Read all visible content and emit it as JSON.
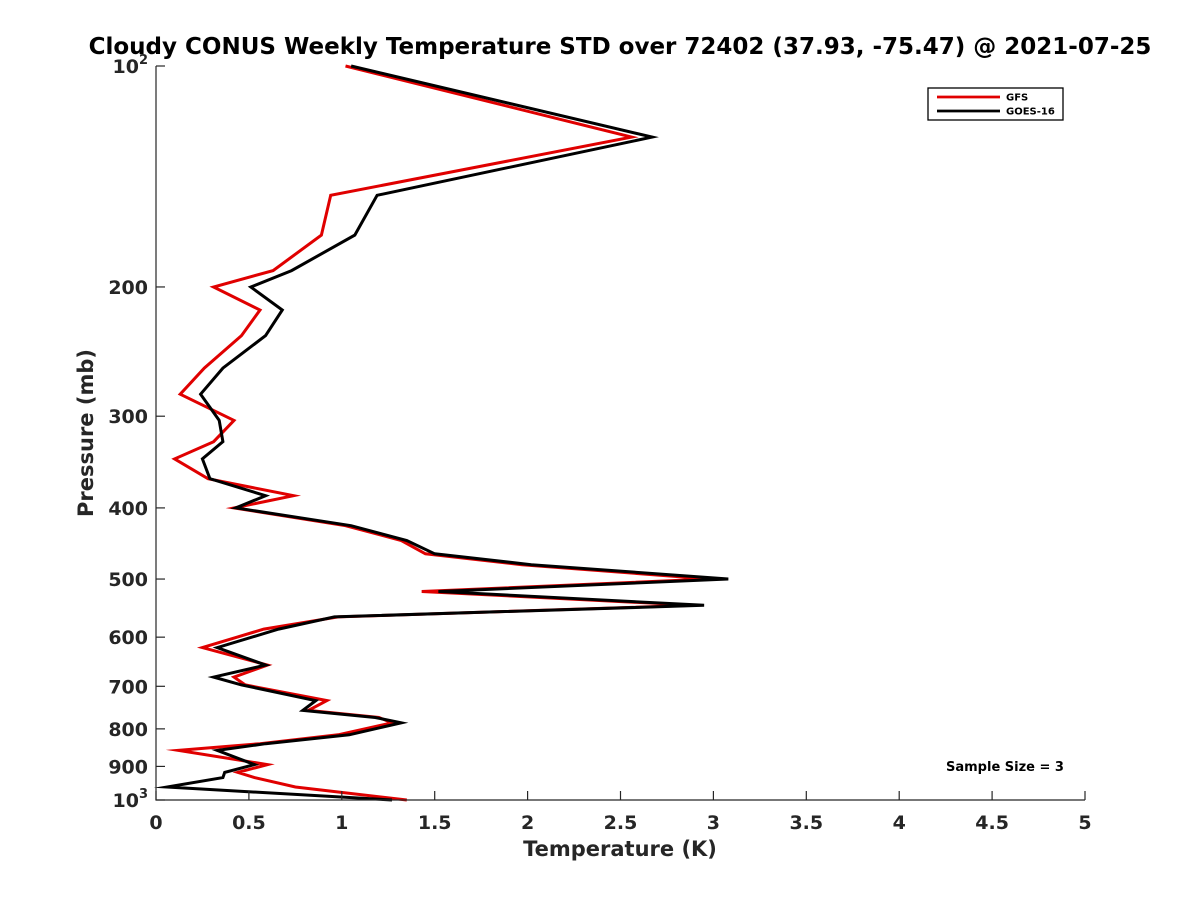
{
  "chart_data": {
    "type": "line",
    "title": "Cloudy CONUS Weekly Temperature STD over 72402 (37.93, -75.47) @ 2021-07-25",
    "xlabel": "Temperature (K)",
    "ylabel": "Pressure (mb)",
    "xlim": [
      0,
      5
    ],
    "ylim": [
      100,
      1000
    ],
    "y_scale": "log",
    "y_reversed": true,
    "grid": false,
    "legend_position": "top-right",
    "x_ticks": [
      "0",
      "0.5",
      "1",
      "1.5",
      "2",
      "2.5",
      "3",
      "3.5",
      "4",
      "4.5",
      "5"
    ],
    "y_ticks": [
      {
        "value": 100,
        "base": "10",
        "exp": "2"
      },
      {
        "value": 200,
        "label": "200"
      },
      {
        "value": 300,
        "label": "300"
      },
      {
        "value": 400,
        "label": "400"
      },
      {
        "value": 500,
        "label": "500"
      },
      {
        "value": 600,
        "label": "600"
      },
      {
        "value": 700,
        "label": "700"
      },
      {
        "value": 800,
        "label": "800"
      },
      {
        "value": 900,
        "label": "900"
      },
      {
        "value": 1000,
        "base": "10",
        "exp": "3"
      }
    ],
    "series": [
      {
        "name": "GFS",
        "color": "#e00000",
        "points": [
          [
            1.02,
            100
          ],
          [
            2.56,
            125
          ],
          [
            0.94,
            150
          ],
          [
            0.89,
            170
          ],
          [
            0.63,
            190
          ],
          [
            0.31,
            200
          ],
          [
            0.56,
            215
          ],
          [
            0.46,
            233
          ],
          [
            0.26,
            258
          ],
          [
            0.13,
            280
          ],
          [
            0.42,
            304
          ],
          [
            0.31,
            325
          ],
          [
            0.1,
            343
          ],
          [
            0.28,
            365
          ],
          [
            0.74,
            385
          ],
          [
            0.42,
            400
          ],
          [
            1.02,
            423
          ],
          [
            1.32,
            443
          ],
          [
            1.45,
            462
          ],
          [
            1.97,
            478
          ],
          [
            2.98,
            500
          ],
          [
            1.43,
            520
          ],
          [
            2.9,
            543
          ],
          [
            0.98,
            563
          ],
          [
            0.58,
            585
          ],
          [
            0.25,
            620
          ],
          [
            0.6,
            655
          ],
          [
            0.42,
            680
          ],
          [
            0.48,
            697
          ],
          [
            0.92,
            732
          ],
          [
            0.82,
            755
          ],
          [
            1.2,
            772
          ],
          [
            1.27,
            785
          ],
          [
            0.98,
            815
          ],
          [
            0.56,
            838
          ],
          [
            0.12,
            856
          ],
          [
            0.6,
            895
          ],
          [
            0.44,
            917
          ],
          [
            0.53,
            932
          ],
          [
            0.75,
            960
          ],
          [
            1.35,
            1000
          ]
        ]
      },
      {
        "name": "GOES-16",
        "color": "#000000",
        "points": [
          [
            1.05,
            100
          ],
          [
            2.67,
            125
          ],
          [
            1.19,
            150
          ],
          [
            1.07,
            170
          ],
          [
            0.73,
            190
          ],
          [
            0.51,
            200
          ],
          [
            0.68,
            215
          ],
          [
            0.59,
            233
          ],
          [
            0.36,
            258
          ],
          [
            0.24,
            280
          ],
          [
            0.34,
            304
          ],
          [
            0.36,
            325
          ],
          [
            0.25,
            343
          ],
          [
            0.29,
            365
          ],
          [
            0.59,
            385
          ],
          [
            0.43,
            400
          ],
          [
            1.05,
            423
          ],
          [
            1.35,
            443
          ],
          [
            1.5,
            462
          ],
          [
            2.02,
            478
          ],
          [
            3.08,
            500
          ],
          [
            1.52,
            520
          ],
          [
            2.95,
            543
          ],
          [
            0.96,
            563
          ],
          [
            0.66,
            585
          ],
          [
            0.33,
            620
          ],
          [
            0.59,
            655
          ],
          [
            0.31,
            680
          ],
          [
            0.46,
            697
          ],
          [
            0.86,
            732
          ],
          [
            0.79,
            755
          ],
          [
            1.18,
            772
          ],
          [
            1.32,
            785
          ],
          [
            1.04,
            815
          ],
          [
            0.59,
            838
          ],
          [
            0.33,
            856
          ],
          [
            0.53,
            895
          ],
          [
            0.37,
            917
          ],
          [
            0.36,
            932
          ],
          [
            0.06,
            960
          ],
          [
            1.27,
            1000
          ]
        ]
      }
    ],
    "annotations": [
      "Sample Size = 3"
    ]
  }
}
